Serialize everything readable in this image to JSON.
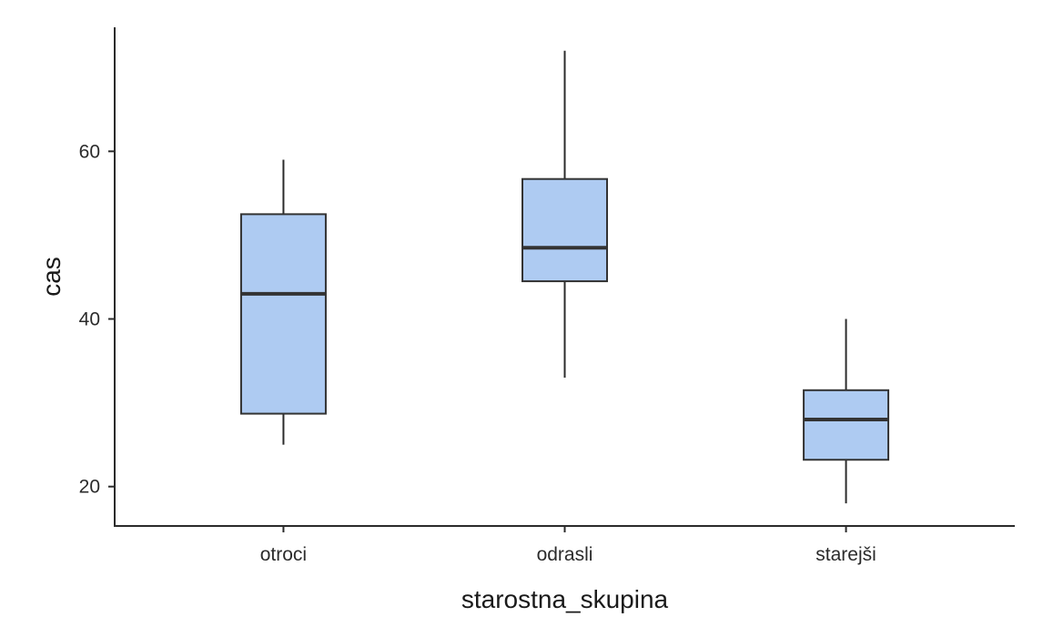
{
  "chart_data": {
    "type": "boxplot",
    "title": "",
    "xlabel": "starostna_skupina",
    "ylabel": "cas",
    "ylim": [
      15.3,
      74.8
    ],
    "yticks": [
      20,
      40,
      60
    ],
    "grid": false,
    "legend": "none",
    "box_fill": "#aecbf2",
    "box_stroke": "#333333",
    "categories": [
      "otroci",
      "odrasli",
      "starejši"
    ],
    "boxes": [
      {
        "category": "otroci",
        "whisker_low": 25,
        "q1": 28.7,
        "median": 43.0,
        "q3": 52.5,
        "whisker_high": 59
      },
      {
        "category": "odrasli",
        "whisker_low": 33,
        "q1": 44.5,
        "median": 48.5,
        "q3": 56.7,
        "whisker_high": 72
      },
      {
        "category": "starejši",
        "whisker_low": 18,
        "q1": 23.2,
        "median": 28.0,
        "q3": 31.5,
        "whisker_high": 40
      }
    ]
  }
}
